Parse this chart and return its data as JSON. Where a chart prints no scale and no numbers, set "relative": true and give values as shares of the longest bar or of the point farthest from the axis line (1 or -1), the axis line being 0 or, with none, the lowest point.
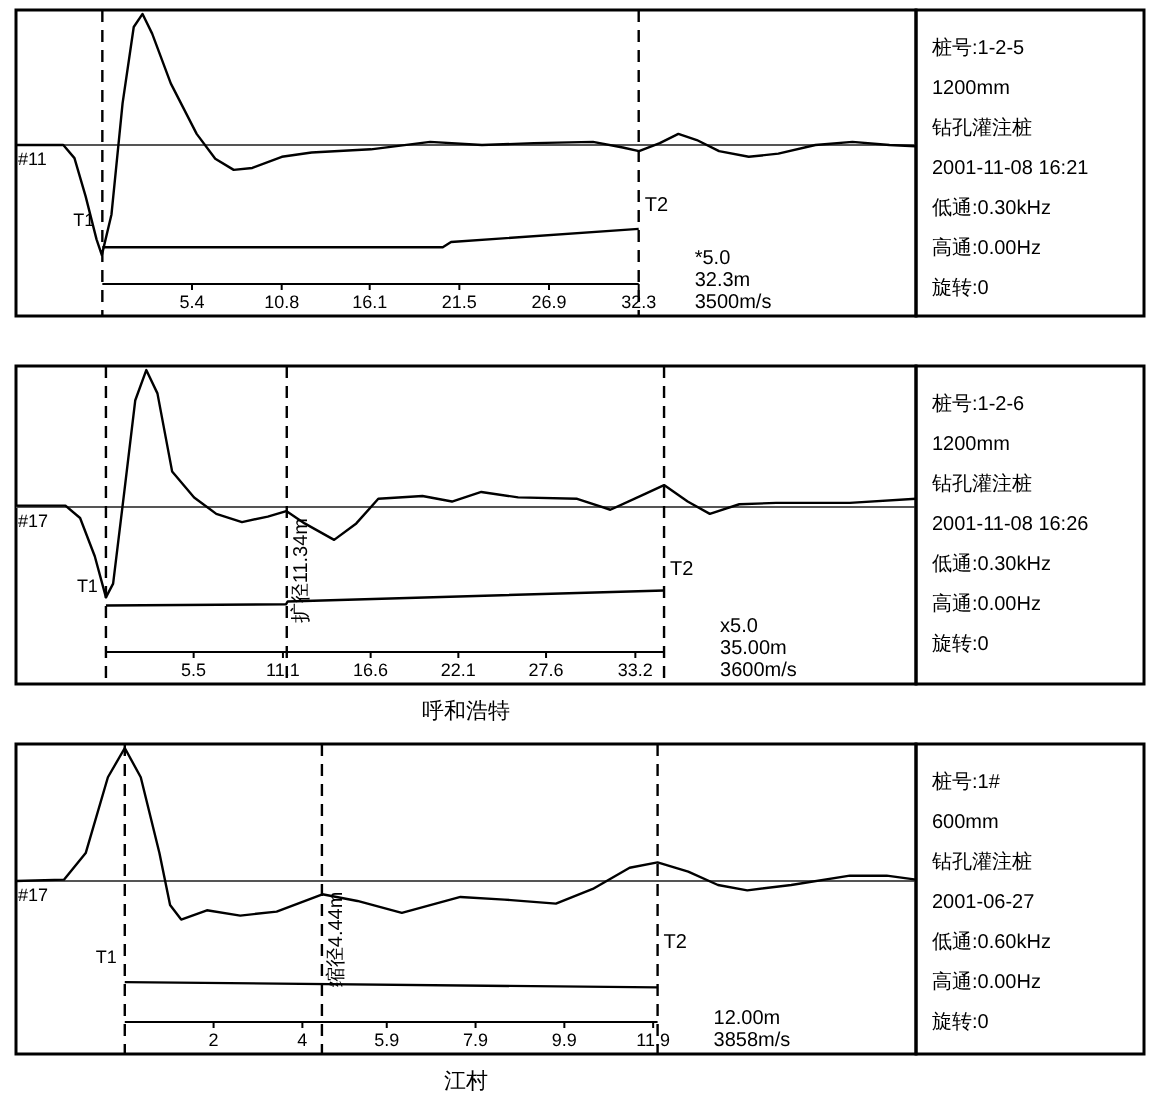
{
  "chart_data": [
    {
      "type": "line",
      "relative": true,
      "xlim": [
        -5.2,
        49.0
      ],
      "xticks": [
        5.4,
        10.8,
        16.1,
        21.5,
        26.9,
        32.3
      ],
      "series": [
        {
          "color": "#000000",
          "x": [
            -5.2,
            -2.35,
            -1.68,
            -1.01,
            -0.35,
            -0.03,
            0.55,
            1.22,
            1.89,
            2.42,
            3.0,
            4.12,
            5.68,
            6.8,
            7.91,
            9.03,
            10.81,
            12.6,
            16.17,
            19.74,
            22.86,
            25.99,
            29.55,
            31.34,
            32.32,
            33.57,
            34.69,
            35.8,
            37.14,
            38.93,
            40.71,
            42.94,
            45.17,
            47.4,
            48.96
          ],
          "values": [
            0,
            0,
            -0.1,
            -0.39,
            -0.72,
            -0.84,
            -0.53,
            0.32,
            0.9,
            1.0,
            0.85,
            0.47,
            0.085,
            -0.105,
            -0.19,
            -0.175,
            -0.09,
            -0.057,
            -0.033,
            0.024,
            0,
            0.014,
            0.024,
            -0.019,
            -0.047,
            0.014,
            0.085,
            0.038,
            -0.047,
            -0.09,
            -0.066,
            0,
            0.024,
            0,
            -0.01
          ]
        },
        {
          "color": "#000000",
          "x": [
            0,
            20.5,
            21,
            32.3
          ],
          "values": [
            -0.78,
            -0.78,
            -0.74,
            -0.64
          ]
        }
      ],
      "ref_lines": [
        {
          "axis": "x",
          "value": 0,
          "label": "T1",
          "line_style": "dashed"
        },
        {
          "axis": "x",
          "value": 32.3,
          "label": "T2",
          "line_style": "dashed"
        }
      ],
      "annotations": [
        "#11",
        "*5.0",
        "32.3m",
        "3500m/s"
      ]
    },
    {
      "type": "other",
      "annotations": [
        "桩号:1-2-5",
        "1200mm",
        "钻孔灌注桩",
        "2001-11-08  16:21",
        "低通:0.30kHz",
        "高通:0.00Hz",
        "旋转:0"
      ]
    },
    {
      "type": "line",
      "relative": true,
      "xlim": [
        -5.64,
        50.8
      ],
      "xticks": [
        5.5,
        11.1,
        16.6,
        22.1,
        27.6,
        33.2
      ],
      "xlabel": "呼和浩特",
      "series": [
        {
          "color": "#000000",
          "x": [
            -5.64,
            -2.54,
            -1.62,
            -0.7,
            0,
            0.45,
            1.15,
            1.84,
            2.53,
            3.23,
            4.15,
            5.53,
            6.92,
            8.53,
            10.15,
            11.31,
            12.46,
            14.31,
            15.7,
            17.08,
            19.85,
            21.7,
            23.54,
            25.85,
            29.55,
            31.63,
            33.71,
            35.0,
            36.48,
            37.87,
            39.72,
            42.03,
            46.65,
            50.8
          ],
          "values": [
            0.01,
            0.01,
            -0.08,
            -0.36,
            -0.66,
            -0.56,
            0.11,
            0.78,
            1.0,
            0.83,
            0.26,
            0.07,
            -0.05,
            -0.11,
            -0.07,
            -0.03,
            -0.12,
            -0.24,
            -0.12,
            0.06,
            0.08,
            0.04,
            0.11,
            0.07,
            0.06,
            -0.02,
            0.09,
            0.16,
            0.04,
            -0.05,
            0.02,
            0.03,
            0.03,
            0.06
          ]
        },
        {
          "color": "#000000",
          "x": [
            0,
            11.3,
            11.4,
            35.0
          ],
          "values": [
            -0.72,
            -0.71,
            -0.69,
            -0.61
          ]
        }
      ],
      "ref_lines": [
        {
          "axis": "x",
          "value": 0,
          "label": "T1",
          "line_style": "dashed"
        },
        {
          "axis": "x",
          "value": 11.34,
          "label": "扩径11.34m",
          "line_style": "dashed"
        },
        {
          "axis": "x",
          "value": 35.0,
          "label": "T2",
          "line_style": "dashed"
        }
      ],
      "annotations": [
        "#17",
        "x5.0",
        "35.00m",
        "3600m/s"
      ]
    },
    {
      "type": "other",
      "annotations": [
        "桩号:1-2-6",
        "1200mm",
        "钻孔灌注桩",
        "2001-11-08  16:26",
        "低通:0.30kHz",
        "高通:0.00Hz",
        "旋转:0"
      ]
    },
    {
      "type": "line",
      "relative": true,
      "xlim": [
        -2.45,
        17.82
      ],
      "xticks": [
        2.0,
        4.0,
        5.9,
        7.9,
        9.9,
        11.9
      ],
      "xlabel": "江村",
      "series": [
        {
          "color": "#000000",
          "x": [
            -2.45,
            -1.37,
            -0.88,
            -0.38,
            0,
            0.36,
            0.78,
            1.02,
            1.27,
            1.85,
            2.6,
            3.42,
            4.45,
            5.24,
            6.24,
            7.56,
            8.55,
            9.71,
            10.54,
            11.37,
            12.0,
            12.69,
            13.36,
            14.02,
            15.01,
            16.33,
            17.16,
            17.82
          ],
          "values": [
            0,
            0.01,
            0.21,
            0.78,
            1.0,
            0.78,
            0.21,
            -0.18,
            -0.29,
            -0.22,
            -0.26,
            -0.23,
            -0.1,
            -0.15,
            -0.24,
            -0.12,
            -0.14,
            -0.17,
            -0.06,
            0.1,
            0.14,
            0.07,
            -0.03,
            -0.07,
            -0.03,
            0.04,
            0.04,
            0.01
          ]
        },
        {
          "color": "#000000",
          "x": [
            0,
            12.0
          ],
          "values": [
            -0.76,
            -0.8
          ]
        }
      ],
      "ref_lines": [
        {
          "axis": "x",
          "value": 0,
          "label": "T1",
          "line_style": "dashed"
        },
        {
          "axis": "x",
          "value": 4.44,
          "label": "缩径4.44m",
          "line_style": "dashed"
        },
        {
          "axis": "x",
          "value": 12.0,
          "label": "T2",
          "line_style": "dashed"
        }
      ],
      "annotations": [
        "#17",
        "12.00m",
        "3858m/s"
      ]
    },
    {
      "type": "other",
      "annotations": [
        "桩号:1#",
        "600mm",
        "钻孔灌注桩",
        "2001-06-27",
        "低通:0.60kHz",
        "高通:0.00Hz",
        "旋转:0"
      ]
    }
  ]
}
